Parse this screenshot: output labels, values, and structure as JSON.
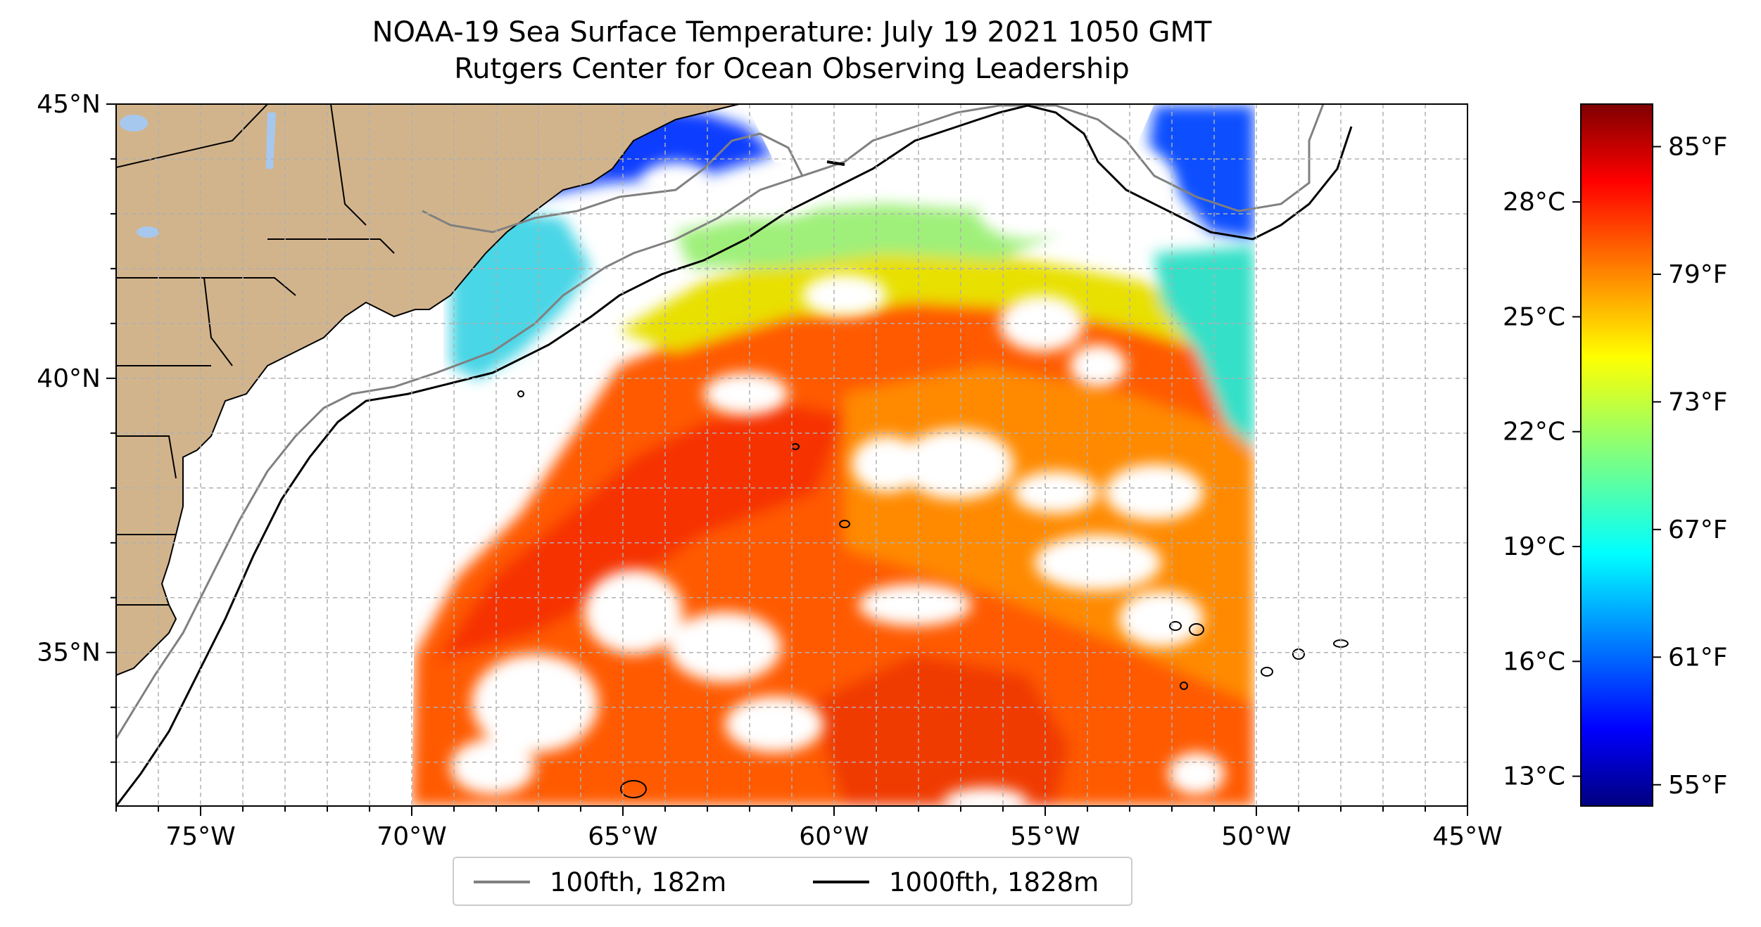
{
  "title": {
    "line1": "NOAA-19 Sea Surface Temperature: July 19 2021 1050 GMT",
    "line2": "Rutgers Center for Ocean Observing Leadership"
  },
  "map": {
    "lon_range": [
      -77,
      -45
    ],
    "lat_range": [
      32.2,
      45
    ],
    "gridlines": "dashed",
    "lon_ticks": [
      "75°W",
      "70°W",
      "65°W",
      "60°W",
      "55°W",
      "50°W",
      "45°W"
    ],
    "lat_ticks": [
      "45°N",
      "40°N",
      "35°N"
    ],
    "land_color": "#d2b48c",
    "lake_color": "#a6c8ef",
    "coastline_color": "#000000",
    "colormap": "jet"
  },
  "colorbar": {
    "celsius_ticks": [
      "28°C",
      "25°C",
      "22°C",
      "19°C",
      "16°C",
      "13°C"
    ],
    "fahrenheit_ticks": [
      "85°F",
      "79°F",
      "73°F",
      "67°F",
      "61°F",
      "55°F"
    ],
    "range_f": [
      54,
      87
    ]
  },
  "legend": {
    "items": [
      {
        "label": "100fth, 182m",
        "color": "#808080"
      },
      {
        "label": "1000fth, 1828m",
        "color": "#000000"
      }
    ]
  }
}
